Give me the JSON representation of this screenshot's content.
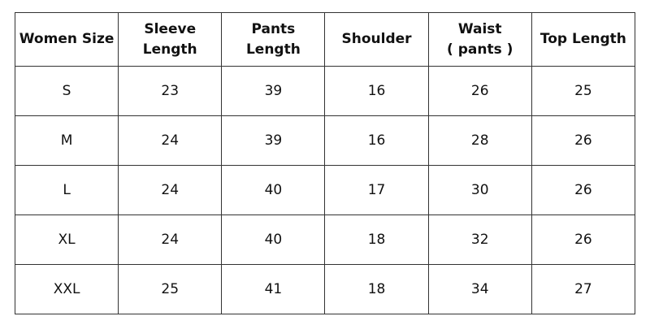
{
  "table": {
    "headers": [
      [
        "Women Size"
      ],
      [
        "Sleeve",
        "Length"
      ],
      [
        "Pants",
        "Length"
      ],
      [
        "Shoulder"
      ],
      [
        "Waist",
        "( pants )"
      ],
      [
        "Top Length"
      ]
    ],
    "rows": [
      [
        "S",
        "23",
        "39",
        "16",
        "26",
        "25"
      ],
      [
        "M",
        "24",
        "39",
        "16",
        "28",
        "26"
      ],
      [
        "L",
        "24",
        "40",
        "17",
        "30",
        "26"
      ],
      [
        "XL",
        "24",
        "40",
        "18",
        "32",
        "26"
      ],
      [
        "XXL",
        "25",
        "41",
        "18",
        "34",
        "27"
      ]
    ]
  }
}
